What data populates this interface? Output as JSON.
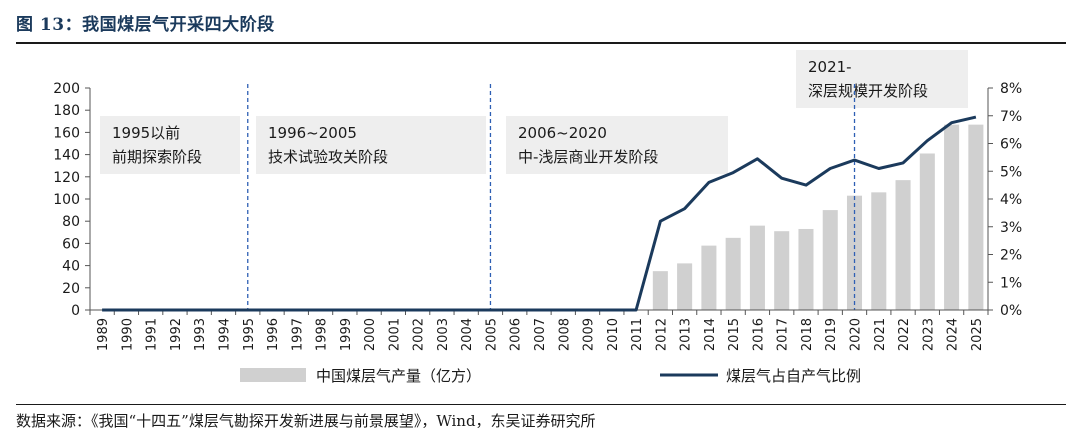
{
  "figure": {
    "title": "图 13：我国煤层气开采四大阶段",
    "source": "数据来源：《我国“十四五”煤层气勘探开发新进展与前景展望》，Wind，东吴证券研究所"
  },
  "chart_data": {
    "type": "bar+line",
    "categories": [
      "1989",
      "1990",
      "1991",
      "1992",
      "1993",
      "1994",
      "1995",
      "1996",
      "1997",
      "1998",
      "1999",
      "2000",
      "2001",
      "2002",
      "2003",
      "2004",
      "2005",
      "2006",
      "2007",
      "2008",
      "2009",
      "2010",
      "2011",
      "2012",
      "2013",
      "2014",
      "2015",
      "2016",
      "2017",
      "2018",
      "2019",
      "2020",
      "2021",
      "2022",
      "2023",
      "2024",
      "2025"
    ],
    "series": [
      {
        "name": "中国煤层气产量（亿方）",
        "type": "bar",
        "axis": "left",
        "color": "#d0d0d0",
        "values": [
          0,
          0,
          0,
          0,
          0,
          0,
          0,
          0,
          0,
          0,
          0,
          0,
          0,
          0,
          0,
          0,
          0,
          0,
          0,
          0,
          0,
          0,
          0,
          35,
          42,
          58,
          65,
          76,
          71,
          73,
          90,
          103,
          106,
          117,
          141,
          167,
          167
        ]
      },
      {
        "name": "煤层气占自产气比例",
        "type": "line",
        "axis": "right",
        "color": "#1b3a5c",
        "values": [
          0,
          0,
          0,
          0,
          0,
          0,
          0,
          0,
          0,
          0,
          0,
          0,
          0,
          0,
          0,
          0,
          0,
          0,
          0,
          0,
          0,
          0,
          0,
          3.2,
          3.65,
          4.6,
          4.95,
          5.45,
          4.75,
          4.5,
          5.1,
          5.4,
          5.1,
          5.3,
          6.1,
          6.75,
          6.95
        ]
      }
    ],
    "y_left": {
      "min": 0,
      "max": 200,
      "ticks": [
        "0",
        "20",
        "40",
        "60",
        "80",
        "100",
        "120",
        "140",
        "160",
        "180",
        "200"
      ]
    },
    "y_right": {
      "min": 0,
      "max": 8,
      "ticks": [
        "0%",
        "1%",
        "2%",
        "3%",
        "4%",
        "5%",
        "6%",
        "7%",
        "8%"
      ]
    },
    "stages": [
      {
        "line1": "1995以前",
        "line2": "前期探索阶段",
        "start": "1989",
        "end": "1995"
      },
      {
        "line1": "1996~2005",
        "line2": "技术试验攻关阶段",
        "start": "1995",
        "end": "2005"
      },
      {
        "line1": "2006~2020",
        "line2": "中-浅层商业开发阶段",
        "start": "2005",
        "end": "2020"
      },
      {
        "line1": "2021-",
        "line2": "深层规模开发阶段",
        "start": "2020",
        "end": "2025"
      }
    ],
    "dividers": [
      "1995",
      "2005",
      "2020"
    ],
    "legend_placement": "bottom",
    "grid": false
  }
}
